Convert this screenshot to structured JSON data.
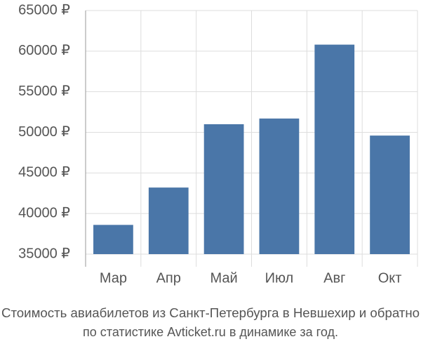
{
  "chart_data": {
    "type": "bar",
    "caption": [
      "Стоимость авиабилетов из Санкт-Петербурга в Невшехир и обратно",
      "по статистике Avticket.ru в динамике за год."
    ],
    "categories": [
      "Мар",
      "Апр",
      "Май",
      "Июл",
      "Авг",
      "Окт"
    ],
    "values": [
      38600,
      43200,
      51000,
      51700,
      60800,
      49600
    ],
    "color": "#4a76a8",
    "ylim": [
      35000,
      65000
    ],
    "yticks": [
      {
        "value": 35000,
        "label": "35000 ₽"
      },
      {
        "value": 40000,
        "label": "40000 ₽"
      },
      {
        "value": 45000,
        "label": "45000 ₽"
      },
      {
        "value": 50000,
        "label": "50000 ₽"
      },
      {
        "value": 55000,
        "label": "55000 ₽"
      },
      {
        "value": 60000,
        "label": "60000 ₽"
      },
      {
        "value": 65000,
        "label": "65000 ₽"
      }
    ],
    "grid": true
  }
}
